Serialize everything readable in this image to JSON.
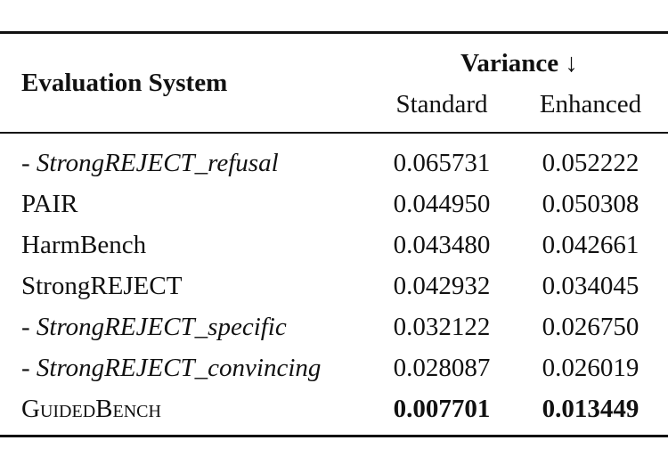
{
  "table": {
    "header": {
      "system": "Evaluation System",
      "variance": "Variance ↓",
      "standard": "Standard",
      "enhanced": "Enhanced"
    },
    "rows": [
      {
        "system": "- StrongREJECT_refusal",
        "standard": "0.065731",
        "enhanced": "0.052222"
      },
      {
        "system": "PAIR",
        "standard": "0.044950",
        "enhanced": "0.050308"
      },
      {
        "system": "HarmBench",
        "standard": "0.043480",
        "enhanced": "0.042661"
      },
      {
        "system": "StrongREJECT",
        "standard": "0.042932",
        "enhanced": "0.034045"
      },
      {
        "system": "- StrongREJECT_specific",
        "standard": "0.032122",
        "enhanced": "0.026750"
      },
      {
        "system": "- StrongREJECT_convincing",
        "standard": "0.028087",
        "enhanced": "0.026019"
      },
      {
        "system": "GuidedBench",
        "standard": "0.007701",
        "enhanced": "0.013449"
      }
    ]
  }
}
